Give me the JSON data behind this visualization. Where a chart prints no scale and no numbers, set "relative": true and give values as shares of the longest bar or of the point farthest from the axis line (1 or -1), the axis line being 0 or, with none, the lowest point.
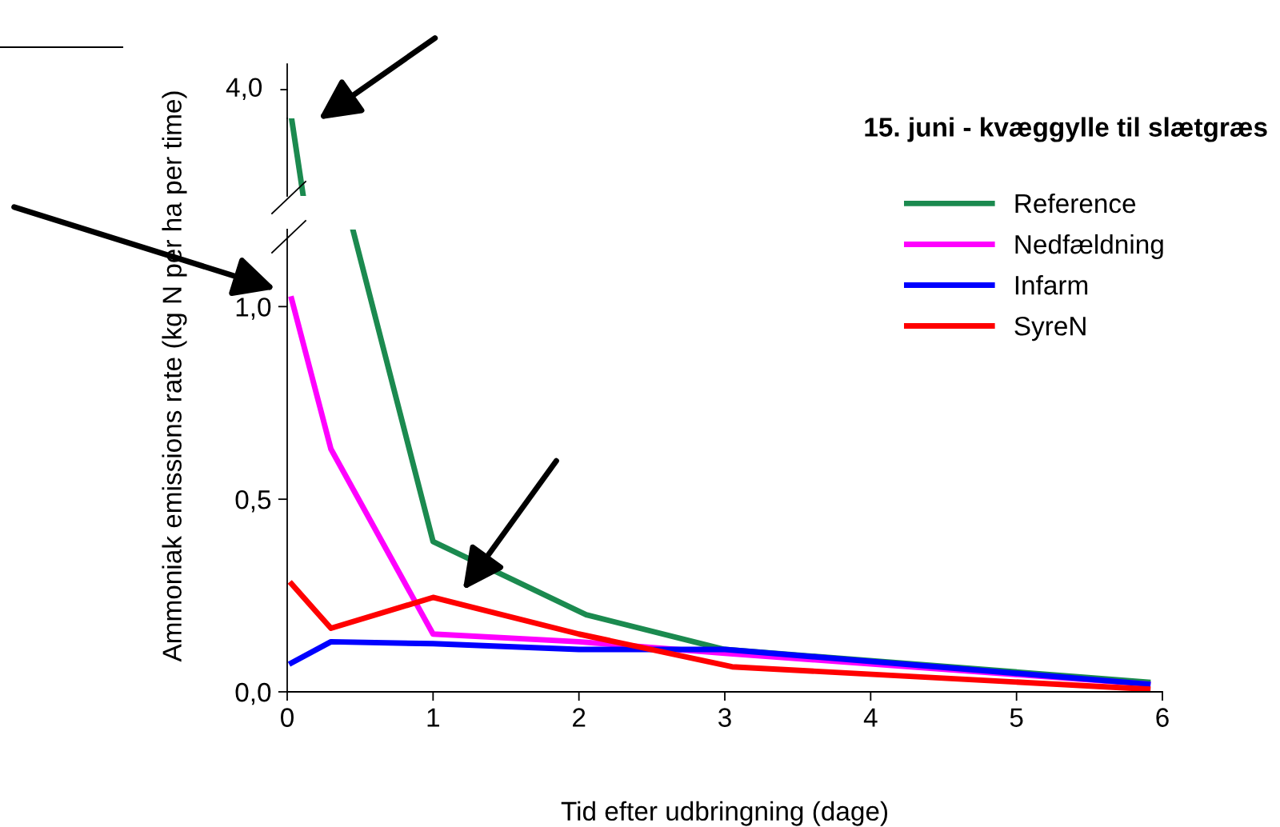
{
  "chart_data": [
    {
      "type": "line",
      "title": "15. juni - kvæggylle til slætgræs",
      "xlim": [
        0,
        6
      ],
      "relative": true,
      "annotations": [
        "4,0"
      ],
      "grid": false,
      "line_style": "solid",
      "marker": "none",
      "series": [
        {
          "color": "#1b8a4f",
          "x": [
            0.03,
            0.11
          ],
          "values": [
            1,
            0
          ]
        }
      ]
    },
    {
      "type": "line",
      "xlabel": "Tid efter udbringning (dage)",
      "ylabel": "Ammoniak emissions rate (kg N per ha per time)",
      "xlim": [
        0,
        6
      ],
      "xticks": [
        0,
        1,
        2,
        3,
        4,
        5,
        6
      ],
      "ylim": [
        0,
        1.2
      ],
      "yticks": [
        {
          "value": 0,
          "label": "0,0"
        },
        {
          "value": 0.5,
          "label": "0,5"
        },
        {
          "value": 1.0,
          "label": "1,0"
        }
      ],
      "grid": false,
      "legend": "top right",
      "line_style": "solid",
      "marker": "none",
      "series": [
        {
          "name": "Reference",
          "color": "#1b8a4f",
          "x": [
            0.45,
            1,
            2.05,
            3,
            5.9
          ],
          "values": [
            1.2,
            0.39,
            0.2,
            0.11,
            0.025
          ]
        },
        {
          "name": "Nedfældning",
          "color": "#ff00ff",
          "x": [
            0.03,
            0.3,
            1,
            2,
            3,
            5.9
          ],
          "values": [
            1.02,
            0.63,
            0.15,
            0.13,
            0.1,
            0.02
          ]
        },
        {
          "name": "Infarm",
          "color": "#0000ff",
          "x": [
            0.03,
            0.3,
            1,
            2,
            3,
            5.9
          ],
          "values": [
            0.075,
            0.13,
            0.125,
            0.11,
            0.11,
            0.02
          ]
        },
        {
          "name": "SyreN",
          "color": "#ff0000",
          "x": [
            0.03,
            0.3,
            1,
            2,
            3.05,
            5.9
          ],
          "values": [
            0.28,
            0.165,
            0.245,
            0.15,
            0.065,
            0.007
          ]
        }
      ]
    }
  ]
}
